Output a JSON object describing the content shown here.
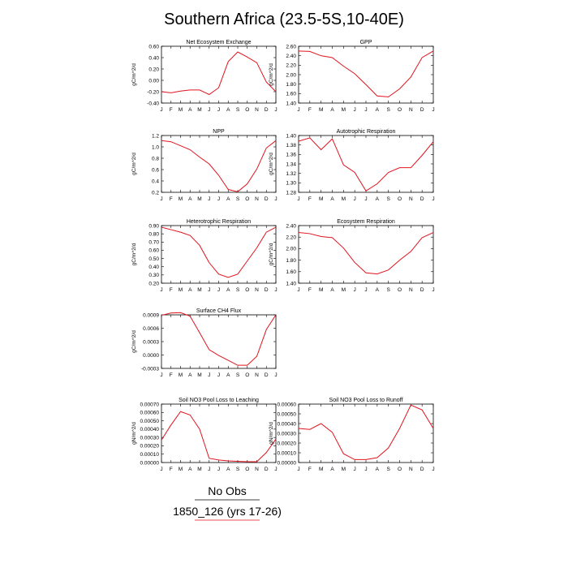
{
  "figure": {
    "title": "Southern Africa (23.5-5S,10-40E)",
    "legend": [
      {
        "label": "No Obs",
        "color": "#000000"
      },
      {
        "label": "1850_126 (yrs 17-26)",
        "color": "#e0141e"
      }
    ]
  },
  "chart_data": [
    {
      "type": "line",
      "title": "Net Ecosystem Exchange",
      "ylabel": "gC/m^2/d",
      "x": [
        "J",
        "F",
        "M",
        "A",
        "M",
        "J",
        "J",
        "A",
        "S",
        "O",
        "N",
        "D",
        "J"
      ],
      "ylim": [
        -0.4,
        0.6
      ],
      "yticks": [
        "-0.40",
        "-0.20",
        "0.00",
        "0.20",
        "0.40",
        "0.60"
      ],
      "yticks_v": [
        -0.4,
        -0.2,
        0,
        0.2,
        0.4,
        0.6
      ],
      "series": [
        {
          "color": "#e0141e",
          "values": [
            -0.2,
            -0.22,
            -0.19,
            -0.17,
            -0.17,
            -0.25,
            -0.13,
            0.33,
            0.5,
            0.41,
            0.31,
            -0.03,
            -0.2
          ]
        }
      ]
    },
    {
      "type": "line",
      "title": "GPP",
      "ylabel": "gC/m^2/d",
      "x": [
        "J",
        "F",
        "M",
        "A",
        "M",
        "J",
        "J",
        "A",
        "S",
        "O",
        "N",
        "D",
        "J"
      ],
      "ylim": [
        1.4,
        2.6
      ],
      "yticks": [
        "1.40",
        "1.60",
        "1.80",
        "2.00",
        "2.20",
        "2.40",
        "2.60"
      ],
      "yticks_v": [
        1.4,
        1.6,
        1.8,
        2.0,
        2.2,
        2.4,
        2.6
      ],
      "series": [
        {
          "color": "#e0141e",
          "values": [
            2.5,
            2.49,
            2.4,
            2.36,
            2.18,
            2.02,
            1.79,
            1.55,
            1.53,
            1.7,
            1.95,
            2.36,
            2.5
          ]
        }
      ]
    },
    {
      "type": "line",
      "title": "NPP",
      "ylabel": "gC/m^2/d",
      "x": [
        "J",
        "F",
        "M",
        "A",
        "M",
        "J",
        "J",
        "A",
        "S",
        "O",
        "N",
        "D",
        "J"
      ],
      "ylim": [
        0.2,
        1.2
      ],
      "yticks": [
        "0.2",
        "0.4",
        "0.6",
        "0.8",
        "1.0",
        "1.2"
      ],
      "yticks_v": [
        0.2,
        0.4,
        0.6,
        0.8,
        1.0,
        1.2
      ],
      "series": [
        {
          "color": "#e0141e",
          "values": [
            1.11,
            1.09,
            1.02,
            0.95,
            0.82,
            0.7,
            0.5,
            0.25,
            0.21,
            0.35,
            0.61,
            0.98,
            1.11
          ]
        }
      ]
    },
    {
      "type": "line",
      "title": "Autotrophic Respiration",
      "ylabel": "gC/m^2/d",
      "x": [
        "J",
        "F",
        "M",
        "A",
        "M",
        "J",
        "J",
        "A",
        "S",
        "O",
        "N",
        "D",
        "J"
      ],
      "ylim": [
        1.28,
        1.4
      ],
      "yticks": [
        "1.28",
        "1.30",
        "1.32",
        "1.34",
        "1.36",
        "1.38",
        "1.40"
      ],
      "yticks_v": [
        1.28,
        1.3,
        1.32,
        1.34,
        1.36,
        1.38,
        1.4
      ],
      "series": [
        {
          "color": "#e0141e",
          "values": [
            1.388,
            1.395,
            1.37,
            1.393,
            1.338,
            1.322,
            1.283,
            1.298,
            1.322,
            1.332,
            1.332,
            1.358,
            1.387
          ]
        }
      ]
    },
    {
      "type": "line",
      "title": "Heterotrophic Respiration",
      "ylabel": "gC/m^2/d",
      "x": [
        "J",
        "F",
        "M",
        "A",
        "M",
        "J",
        "J",
        "A",
        "S",
        "O",
        "N",
        "D",
        "J"
      ],
      "ylim": [
        0.2,
        0.9
      ],
      "yticks": [
        "0.20",
        "0.30",
        "0.40",
        "0.50",
        "0.60",
        "0.70",
        "0.80",
        "0.90"
      ],
      "yticks_v": [
        0.2,
        0.3,
        0.4,
        0.5,
        0.6,
        0.7,
        0.8,
        0.9
      ],
      "series": [
        {
          "color": "#e0141e",
          "values": [
            0.88,
            0.85,
            0.82,
            0.78,
            0.66,
            0.45,
            0.31,
            0.27,
            0.31,
            0.47,
            0.63,
            0.82,
            0.88
          ]
        }
      ]
    },
    {
      "type": "line",
      "title": "Ecosystem Respiration",
      "ylabel": "gC/m^2/d",
      "x": [
        "J",
        "F",
        "M",
        "A",
        "M",
        "J",
        "J",
        "A",
        "S",
        "O",
        "N",
        "D",
        "J"
      ],
      "ylim": [
        1.4,
        2.4
      ],
      "yticks": [
        "1.40",
        "1.60",
        "1.80",
        "2.00",
        "2.20",
        "2.40"
      ],
      "yticks_v": [
        1.4,
        1.6,
        1.8,
        2.0,
        2.2,
        2.4
      ],
      "series": [
        {
          "color": "#e0141e",
          "values": [
            2.28,
            2.26,
            2.21,
            2.19,
            2.01,
            1.76,
            1.58,
            1.56,
            1.63,
            1.8,
            1.95,
            2.19,
            2.28
          ]
        }
      ]
    },
    {
      "type": "line",
      "title": "Surface CH4 Flux",
      "ylabel": "gC/m^2/d",
      "x": [
        "J",
        "F",
        "M",
        "A",
        "M",
        "J",
        "J",
        "A",
        "S",
        "O",
        "N",
        "D",
        "J"
      ],
      "ylim": [
        -0.0003,
        0.0009
      ],
      "yticks": [
        "-0.0003",
        "0.0000",
        "0.0003",
        "0.0006",
        "0.0009"
      ],
      "yticks_v": [
        -0.0003,
        0,
        0.0003,
        0.0006,
        0.0009
      ],
      "series": [
        {
          "color": "#e0141e",
          "values": [
            0.00089,
            0.00094,
            0.00095,
            0.00087,
            0.0005,
            0.00012,
            -1e-05,
            -0.00012,
            -0.00023,
            -0.00023,
            -3e-05,
            0.00057,
            0.0009
          ]
        }
      ]
    },
    {
      "type": "line",
      "title": "Soil NO3 Pool Loss to Leaching",
      "ylabel": "gN/m^2/d",
      "x": [
        "J",
        "F",
        "M",
        "A",
        "M",
        "J",
        "J",
        "A",
        "S",
        "O",
        "N",
        "D",
        "J"
      ],
      "ylim": [
        0,
        0.0007
      ],
      "yticks": [
        "0.00000",
        "0.00010",
        "0.00020",
        "0.00030",
        "0.00040",
        "0.00050",
        "0.00060",
        "0.00070"
      ],
      "yticks_v": [
        0,
        0.0001,
        0.0002,
        0.0003,
        0.0004,
        0.0005,
        0.0006,
        0.0007
      ],
      "series": [
        {
          "color": "#e0141e",
          "values": [
            0.00027,
            0.00045,
            0.00061,
            0.00057,
            0.0004,
            5e-05,
            3e-05,
            2e-05,
            1.5e-05,
            1e-05,
            1e-05,
            0.00012,
            0.00028
          ]
        }
      ]
    },
    {
      "type": "line",
      "title": "Soil NO3 Pool Loss to Runoff",
      "ylabel": "gN/m^2/d",
      "x": [
        "J",
        "F",
        "M",
        "A",
        "M",
        "J",
        "J",
        "A",
        "S",
        "O",
        "N",
        "D",
        "J"
      ],
      "ylim": [
        0,
        0.0006
      ],
      "yticks": [
        "0.00000",
        "0.00010",
        "0.00020",
        "0.00030",
        "0.00040",
        "0.00050",
        "0.00060"
      ],
      "yticks_v": [
        0,
        0.0001,
        0.0002,
        0.0003,
        0.0004,
        0.0005,
        0.0006
      ],
      "series": [
        {
          "color": "#e0141e",
          "values": [
            0.00035,
            0.00034,
            0.0004,
            0.00031,
            9e-05,
            3e-05,
            3e-05,
            5e-05,
            0.00015,
            0.00035,
            0.00059,
            0.00054,
            0.00035
          ]
        }
      ]
    }
  ]
}
